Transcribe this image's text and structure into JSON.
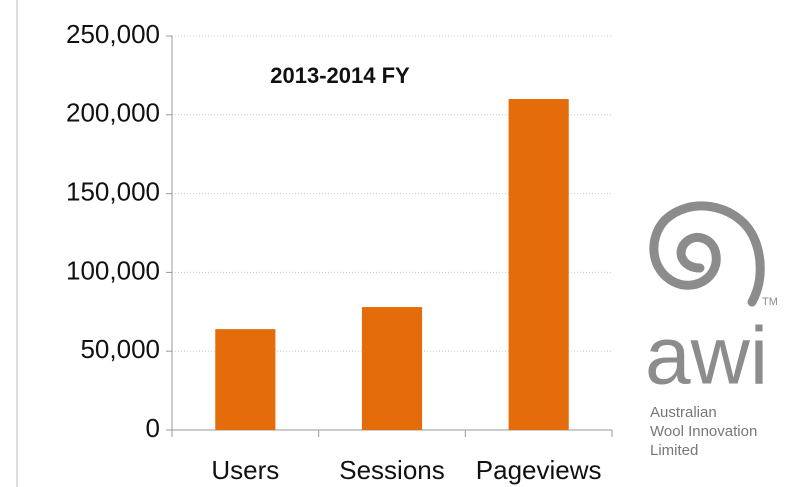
{
  "chart_data": {
    "type": "bar",
    "title": "2013-2014 FY",
    "categories": [
      "Users",
      "Sessions",
      "Pageviews"
    ],
    "values": [
      64000,
      78000,
      210000
    ],
    "color": "#e46c0a",
    "ylim": [
      0,
      250000
    ],
    "yticks": [
      0,
      {
        "value": 50000,
        "label": "50,000"
      },
      {
        "value": 100000,
        "label": "100,000"
      },
      {
        "value": 150000,
        "label": "150,000"
      },
      {
        "value": 200000,
        "label": "200,000"
      },
      {
        "value": 250000,
        "label": "250,000"
      }
    ],
    "grid": true
  },
  "logo": {
    "mark": "awi",
    "trademark": "TM",
    "lines": [
      "Australian",
      "Wool Innovation",
      "Limited"
    ]
  }
}
